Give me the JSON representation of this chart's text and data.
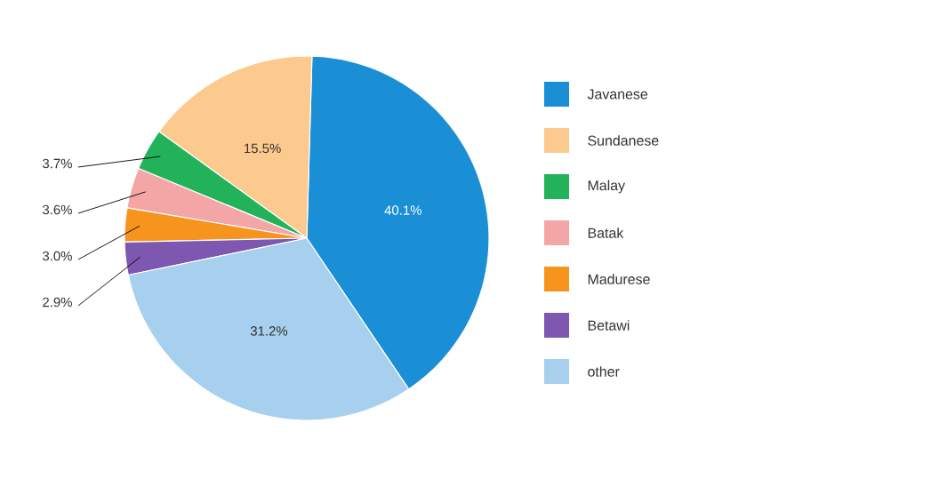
{
  "chart_data": {
    "type": "pie",
    "categories": [
      "Javanese",
      "Sundanese",
      "Malay",
      "Batak",
      "Madurese",
      "Betawi",
      "other"
    ],
    "values": [
      40.1,
      15.5,
      3.7,
      3.6,
      3.0,
      2.9,
      31.2
    ],
    "value_labels": [
      "40.1%",
      "15.5%",
      "3.7%",
      "3.6%",
      "3.0%",
      "2.9%",
      "31.2%"
    ],
    "colors": [
      "#1a8fd6",
      "#fcc98e",
      "#22b35a",
      "#f4a6a6",
      "#f7941d",
      "#7e57b0",
      "#a6d0ee"
    ],
    "legend": "right"
  }
}
